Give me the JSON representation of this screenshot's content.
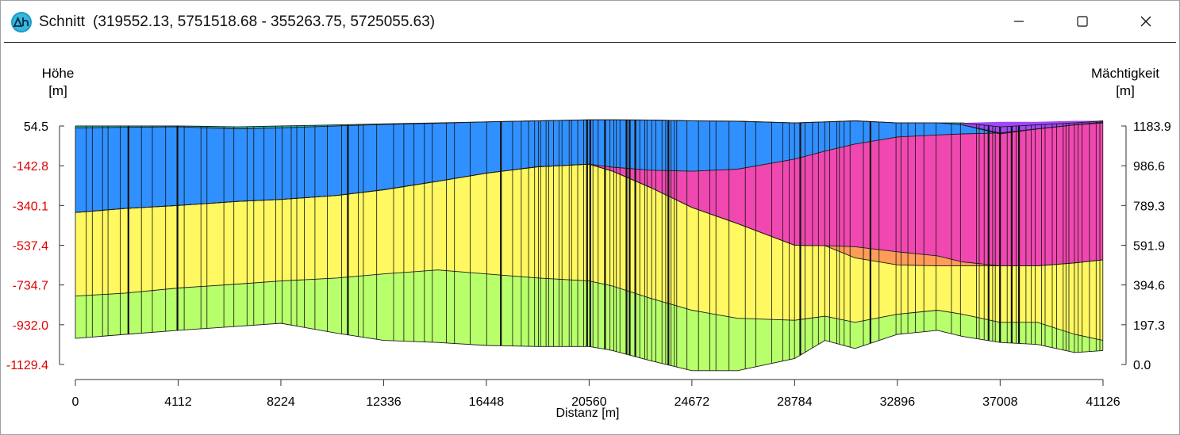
{
  "window": {
    "title": "Schnitt",
    "coordinates": "(319552.13, 5751518.68 - 355263.75, 5725055.63)",
    "icon": "delta-h-app-icon",
    "controls": [
      "minimize-icon",
      "maximize-icon",
      "close-icon"
    ]
  },
  "left_axis": {
    "title": "Höhe",
    "unit": "[m]"
  },
  "right_axis": {
    "title": "Mächtigkeit",
    "unit": "[m]"
  },
  "x_axis": {
    "title": "Distanz [m]"
  },
  "colors": {
    "layer_teal": "#20b8b0",
    "layer_blue": "#3090ff",
    "layer_yellow": "#fff860",
    "layer_green": "#b8ff6c",
    "layer_magenta": "#f048b0",
    "layer_orange": "#ff9c58",
    "layer_purple": "#a048f8",
    "left_tick_negative": "#e00000",
    "app_icon": "#1a9cc8"
  },
  "chart_data": {
    "type": "area",
    "subtype": "geological cross-section (stacked layers)",
    "title": "",
    "xlabel": "Distanz [m]",
    "ylabel": "Höhe [m]",
    "y2label": "Mächtigkeit [m]",
    "xlim": [
      0,
      41126
    ],
    "ylim": [
      -1129.4,
      54.5
    ],
    "y2lim": [
      0.0,
      1183.9
    ],
    "x_ticks": [
      "0",
      "4112",
      "8224",
      "12336",
      "16448",
      "20560",
      "24672",
      "28784",
      "32896",
      "37008",
      "41126"
    ],
    "y_ticks_left": [
      "54.5",
      "-142.8",
      "-340.1",
      "-537.4",
      "-734.7",
      "-932.0",
      "-1129.4"
    ],
    "y_ticks_right": [
      "1183.9",
      "986.6",
      "789.3",
      "591.9",
      "394.6",
      "197.3",
      "0.0"
    ],
    "grid": false,
    "legend": "none",
    "x": [
      0,
      2000,
      4112,
      6500,
      8224,
      10500,
      12336,
      14500,
      16448,
      18500,
      20560,
      21500,
      23000,
      24672,
      26500,
      28784,
      30000,
      31200,
      32896,
      34500,
      35500,
      37008,
      38500,
      40000,
      41126
    ],
    "surfaces": [
      {
        "name": "surface_top",
        "values": [
          55,
          55,
          55,
          50,
          55,
          60,
          65,
          70,
          75,
          80,
          85,
          85,
          84,
          80,
          78,
          70,
          75,
          80,
          70,
          70,
          70,
          50,
          60,
          70,
          80
        ]
      },
      {
        "name": "base_layer_1",
        "values": [
          45,
          48,
          50,
          40,
          45,
          55,
          62,
          68,
          75,
          80,
          85,
          85,
          84,
          80,
          78,
          70,
          75,
          80,
          70,
          70,
          60,
          20,
          40,
          60,
          75
        ]
      },
      {
        "name": "base_layer_2",
        "values": [
          -375,
          -355,
          -340,
          -320,
          -310,
          -290,
          -262,
          -220,
          -180,
          -148,
          -135,
          -150,
          -165,
          -170,
          -160,
          -110,
          -70,
          -35,
          0,
          10,
          15,
          20,
          40,
          60,
          70
        ]
      },
      {
        "name": "base_layer_3",
        "values": [
          -375,
          -355,
          -340,
          -320,
          -310,
          -290,
          -262,
          -220,
          -180,
          -148,
          -135,
          -170,
          -250,
          -350,
          -430,
          -538,
          -540,
          -545,
          -570,
          -590,
          -620,
          -640,
          -640,
          -625,
          -610
        ]
      },
      {
        "name": "base_layer_4",
        "values": [
          -375,
          -355,
          -340,
          -320,
          -310,
          -290,
          -262,
          -220,
          -180,
          -148,
          -135,
          -170,
          -250,
          -350,
          -430,
          -538,
          -540,
          -600,
          -635,
          -640,
          -640,
          -640,
          -640,
          -625,
          -610
        ]
      },
      {
        "name": "base_layer_5",
        "values": [
          -790,
          -775,
          -750,
          -730,
          -715,
          -700,
          -680,
          -660,
          -680,
          -700,
          -715,
          -740,
          -800,
          -860,
          -900,
          -910,
          -890,
          -920,
          -880,
          -860,
          -880,
          -920,
          -920,
          -980,
          -1010
        ]
      },
      {
        "name": "base_layer_6",
        "values": [
          -1000,
          -980,
          -960,
          -940,
          -925,
          -975,
          -1010,
          -1020,
          -1035,
          -1040,
          -1040,
          -1060,
          -1110,
          -1160,
          -1160,
          -1100,
          -1010,
          -1050,
          -980,
          -960,
          -990,
          -1020,
          -1030,
          -1070,
          -1060
        ]
      }
    ],
    "layers": [
      {
        "name": "layer_1",
        "color": "#20b8b0",
        "top": "surface_top",
        "bottom": "base_layer_1"
      },
      {
        "name": "layer_2",
        "color": "#3090ff",
        "top": "base_layer_1",
        "bottom": "base_layer_2"
      },
      {
        "name": "layer_3",
        "color": "#f048b0",
        "top": "base_layer_2",
        "bottom": "base_layer_3"
      },
      {
        "name": "layer_4",
        "color": "#ff9c58",
        "top": "base_layer_3",
        "bottom": "base_layer_4"
      },
      {
        "name": "layer_5",
        "color": "#fff860",
        "top": "base_layer_4",
        "bottom": "base_layer_5"
      },
      {
        "name": "layer_6",
        "color": "#b8ff6c",
        "top": "base_layer_5",
        "bottom": "base_layer_6"
      }
    ],
    "purple_wedge": {
      "color": "#a048f8",
      "x": [
        35500,
        37008,
        38500,
        40000,
        41126
      ],
      "top": [
        70,
        75,
        75,
        80,
        80
      ],
      "bottom": [
        60,
        15,
        40,
        60,
        70
      ]
    }
  }
}
